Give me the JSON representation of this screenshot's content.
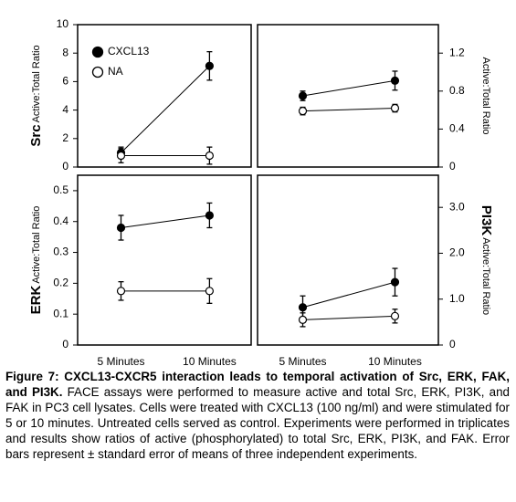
{
  "chart_data": [
    {
      "type": "line",
      "ylabel_bold": "Src",
      "ylabel": "Active:Total Ratio",
      "axis_side": "left",
      "legend": "upper left",
      "categories": [
        null,
        null
      ],
      "series": [
        {
          "name": "CXCL13",
          "color": "#000000",
          "values": [
            1.0,
            7.1
          ],
          "errors": [
            0.4,
            1.0
          ]
        },
        {
          "name": "NA",
          "color": "#ffffff",
          "values": [
            0.8,
            0.8
          ],
          "errors": [
            0.5,
            0.6
          ]
        }
      ],
      "ylim": [
        0,
        10
      ],
      "yticks": [
        0,
        2,
        4,
        6,
        8,
        10
      ]
    },
    {
      "type": "line",
      "ylabel": "Active:Total Ratio",
      "axis_side": "right",
      "categories": [
        null,
        null
      ],
      "series": [
        {
          "color": "#000000",
          "values": [
            0.75,
            0.91
          ],
          "errors": [
            0.05,
            0.1
          ]
        },
        {
          "color": "#ffffff",
          "values": [
            0.59,
            0.62
          ],
          "errors": [
            0.04,
            0.04
          ]
        }
      ],
      "ylim": [
        0,
        1.5
      ],
      "yticks": [
        0,
        0.4,
        0.8,
        1.2
      ]
    },
    {
      "type": "line",
      "ylabel_bold": "ERK",
      "ylabel": "Active:Total Ratio",
      "axis_side": "left",
      "categories": [
        "5 Minutes",
        "10 Minutes"
      ],
      "series": [
        {
          "color": "#000000",
          "values": [
            0.38,
            0.42
          ],
          "errors": [
            0.04,
            0.04
          ]
        },
        {
          "color": "#ffffff",
          "values": [
            0.175,
            0.175
          ],
          "errors": [
            0.03,
            0.04
          ]
        }
      ],
      "ylim": [
        0,
        0.55
      ],
      "yticks": [
        0,
        0.1,
        0.2,
        0.3,
        0.4,
        0.5
      ]
    },
    {
      "type": "line",
      "ylabel_bold": "PI3K",
      "ylabel": "Active:Total Ratio",
      "axis_side": "right",
      "categories": [
        "5 Minutes",
        "10 Minutes"
      ],
      "series": [
        {
          "color": "#000000",
          "values": [
            0.82,
            1.37
          ],
          "errors": [
            0.25,
            0.3
          ]
        },
        {
          "color": "#ffffff",
          "values": [
            0.55,
            0.63
          ],
          "errors": [
            0.15,
            0.15
          ]
        }
      ],
      "ylim": [
        0,
        3.7
      ],
      "yticks": [
        0,
        {
          "value": 1,
          "label": "1.0"
        },
        {
          "value": 2,
          "label": "2.0"
        },
        {
          "value": 3,
          "label": "3.0"
        }
      ]
    }
  ],
  "caption": {
    "label": "Figure 7: CXCL13-CXCR5 interaction leads to temporal activation of Src, ERK, FAK, and PI3K.",
    "text": "FACE assays were performed to measure active and total Src, ERK, PI3K, and FAK in PC3 cell lysates. Cells were treated with CXCL13 (100 ng/ml) and were stimulated for 5 or 10 minutes. Untreated cells served as control. Experiments were performed in triplicates and results show ratios of active (phosphorylated) to total Src, ERK, PI3K, and FAK. Error bars represent ± standard error of means of three independent experiments."
  }
}
